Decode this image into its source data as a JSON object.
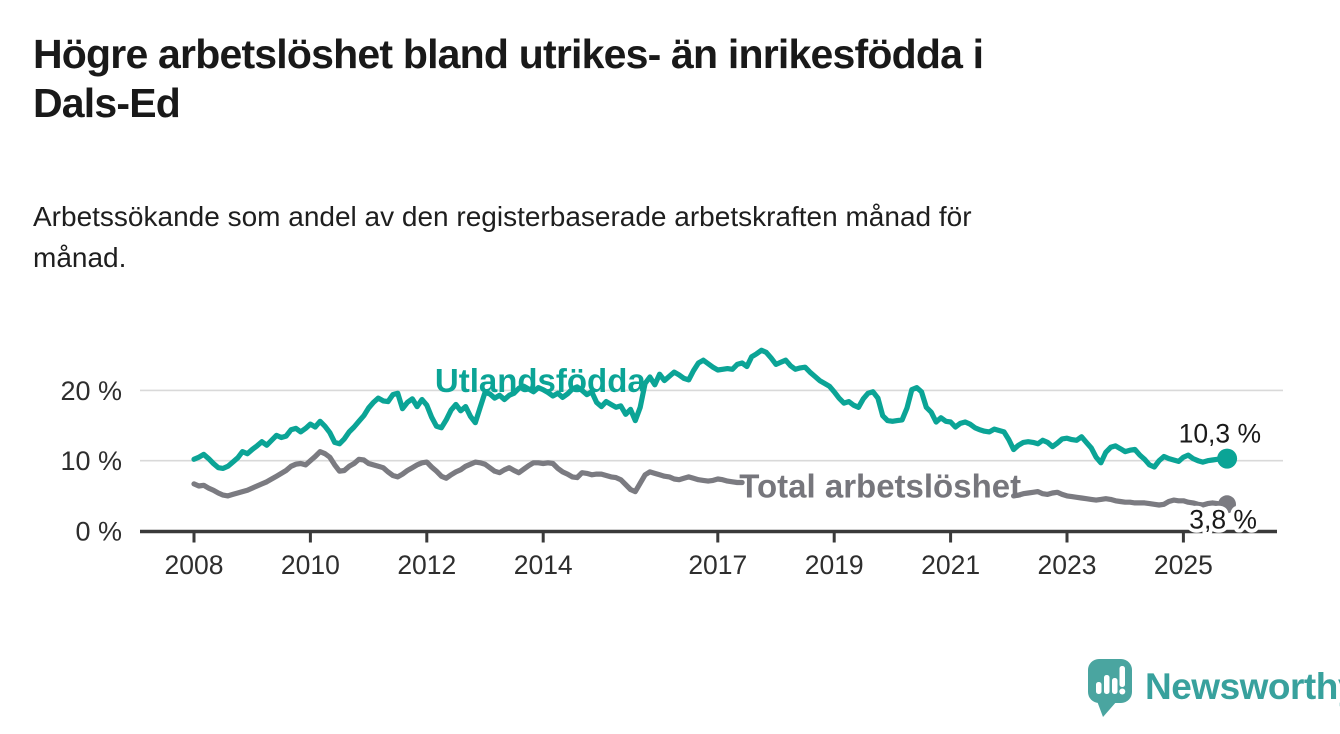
{
  "header": {
    "title": "Högre arbetslöshet bland utrikes- än inrikesfödda i\nDals-Ed",
    "subtitle": "Arbetssökande som andel av den registerbaserade arbetskraften månad för\nmånad."
  },
  "footer": {
    "brand": "Newsworthy",
    "logo_icon": "bar-chart-speech-bubble",
    "brand_color": "#38a19d",
    "logo_bg_color": "#4aa5a0"
  },
  "colors": {
    "foreign_born_line": "#0ba496",
    "total_line": "#7b7b81",
    "gridline": "#d9d9d9",
    "axis": "#3a3a3a",
    "axis_text": "#2e2e2e",
    "end_label_text": "#1a1a1a"
  },
  "chart_data": {
    "type": "line",
    "unit": "%",
    "grid": "horizontal-only",
    "legend_position": "inline-labels-on-lines",
    "x_axis": {
      "start": 2008,
      "end": 2025.75,
      "ticks": [
        2008,
        2010,
        2012,
        2014,
        2017,
        2019,
        2021,
        2023,
        2025
      ]
    },
    "y_axis": {
      "ticks": [
        0,
        10,
        20
      ],
      "tick_labels": [
        "0 %",
        "10 %",
        "20 %"
      ],
      "gridlines": [
        10,
        20
      ],
      "range": [
        0,
        27
      ]
    },
    "series": [
      {
        "id": "utlandsfodda",
        "name": "Utlandsfödda",
        "color": "#0ba496",
        "line_label": {
          "text": "Utlandsfödda",
          "x": 2013.95,
          "y": 19.8
        },
        "end_dot": true,
        "end_label": "10,3 %",
        "end_value": 10.3,
        "segments": [
          {
            "start": 2008,
            "step_months": 1,
            "values": [
              10.2,
              10.5,
              10.9,
              10.3,
              9.6,
              9.0,
              8.9,
              9.2,
              9.8,
              10.4,
              11.3,
              11.0,
              11.6,
              12.1,
              12.7,
              12.2,
              12.9,
              13.6,
              13.3,
              13.5,
              14.4,
              14.6,
              14.1,
              14.6,
              15.2,
              14.8,
              15.6,
              14.9,
              14.0,
              12.6,
              12.4,
              13.1,
              14.1,
              14.8,
              15.6,
              16.4,
              17.5,
              18.3,
              18.9,
              18.5,
              18.4,
              19.4,
              19.6,
              17.4,
              18.3,
              18.8,
              17.7,
              18.7,
              17.9,
              16.2,
              14.9,
              14.7,
              15.8,
              17.2,
              18.0,
              17.1,
              17.7,
              16.3,
              15.4,
              17.6,
              19.7,
              19.5,
              18.9,
              19.3,
              18.7,
              19.3,
              19.6,
              20.3,
              20.6,
              20.2,
              19.8,
              20.4,
              20.1,
              19.7,
              19.2,
              19.6,
              19.0,
              19.5,
              20.2,
              20.5,
              20.0,
              19.4,
              19.8,
              18.3,
              17.7,
              18.4,
              18.0,
              17.6,
              17.8,
              16.6,
              17.3,
              15.7,
              17.6,
              21.0,
              21.9,
              20.8,
              22.3,
              21.4,
              22.0,
              22.6,
              22.2,
              21.7,
              21.5,
              22.8,
              23.9,
              24.3,
              23.8,
              23.3,
              22.9,
              23.0,
              23.1,
              23.0,
              23.7,
              23.9,
              23.4,
              24.8,
              25.2,
              25.7,
              25.4,
              24.6,
              23.7,
              24.0,
              24.3,
              23.5,
              23.0,
              23.2,
              23.3,
              22.6,
              22.0,
              21.4,
              21.0,
              20.6,
              19.8,
              18.9,
              18.2,
              18.4,
              17.9,
              17.6,
              18.8,
              19.6,
              19.8,
              18.9,
              16.4,
              15.7,
              15.6,
              15.7,
              15.8,
              17.5,
              20.1,
              20.4,
              19.8,
              17.6,
              16.9,
              15.5,
              16.1,
              15.6,
              15.5,
              14.8,
              15.3,
              15.5,
              15.2,
              14.7,
              14.4,
              14.2,
              14.1,
              14.5,
              14.3,
              14.1,
              13.0,
              11.6,
              12.2,
              12.6,
              12.7,
              12.6,
              12.4,
              12.9,
              12.6,
              12.0,
              12.5,
              13.1,
              13.2,
              13.0,
              12.9,
              13.4,
              12.6,
              11.8,
              10.5,
              9.7,
              11.2,
              11.9,
              12.1,
              11.7,
              11.3,
              11.5,
              11.6,
              10.8,
              10.2,
              9.4,
              9.1,
              10.0,
              10.6,
              10.3,
              10.1,
              9.9,
              10.5,
              10.8,
              10.3,
              10.0,
              9.8,
              10.0,
              10.1,
              10.2,
              10.2,
              10.3
            ]
          }
        ]
      },
      {
        "id": "total",
        "name": "Total arbetslöshet",
        "color": "#7b7b81",
        "line_label": {
          "text": "Total arbetslöshet",
          "x": 2019.79,
          "y": 4.8
        },
        "end_dot": true,
        "end_label": "3,8 %",
        "end_value": 3.8,
        "segments": [
          {
            "start": 2008,
            "step_months": 1,
            "values": [
              6.7,
              6.4,
              6.5,
              6.1,
              5.8,
              5.4,
              5.1,
              5.0,
              5.2,
              5.4,
              5.6,
              5.8,
              6.1,
              6.4,
              6.7,
              7.0,
              7.4,
              7.8,
              8.2,
              8.6,
              9.2,
              9.5,
              9.6,
              9.4,
              10.0,
              10.6,
              11.3,
              11.0,
              10.5,
              9.4,
              8.5,
              8.6,
              9.2,
              9.6,
              10.2,
              10.1,
              9.6,
              9.4,
              9.2,
              9.0,
              8.4,
              7.9,
              7.7,
              8.1,
              8.6,
              9.0,
              9.4,
              9.7,
              9.8,
              9.1,
              8.5,
              7.8,
              7.5,
              8.0,
              8.4,
              8.7,
              9.2,
              9.5,
              9.8,
              9.7,
              9.5,
              9.0,
              8.5,
              8.3,
              8.7,
              9.0,
              8.6,
              8.3,
              8.8,
              9.3,
              9.7,
              9.7,
              9.6,
              9.7,
              9.6,
              8.9,
              8.4,
              8.1,
              7.7,
              7.6,
              8.3,
              8.2,
              8.0,
              8.1,
              8.1,
              7.9,
              7.7,
              7.6,
              7.3,
              6.6,
              5.9,
              5.6,
              6.8,
              8.0,
              8.4,
              8.2,
              8.0,
              7.8,
              7.7,
              7.4,
              7.3,
              7.5,
              7.7,
              7.5,
              7.3,
              7.2,
              7.1,
              7.2,
              7.4,
              7.3,
              7.1,
              7.0,
              6.9,
              6.9
            ]
          },
          {
            "start": 2022.083,
            "step_months": 1,
            "values": [
              5.0,
              5.1,
              5.3,
              5.4,
              5.5,
              5.6,
              5.3,
              5.2,
              5.4,
              5.5,
              5.2,
              5.0,
              4.9,
              4.8,
              4.7,
              4.6,
              4.5,
              4.4,
              4.5,
              4.6,
              4.5,
              4.3,
              4.2,
              4.1,
              4.1,
              4.0,
              4.0,
              4.0,
              3.9,
              3.8,
              3.7,
              3.8,
              4.2,
              4.4,
              4.3,
              4.3,
              4.1,
              4.0,
              3.8,
              3.7,
              3.9,
              4.0,
              3.9,
              3.8,
              3.8
            ]
          }
        ]
      }
    ]
  }
}
